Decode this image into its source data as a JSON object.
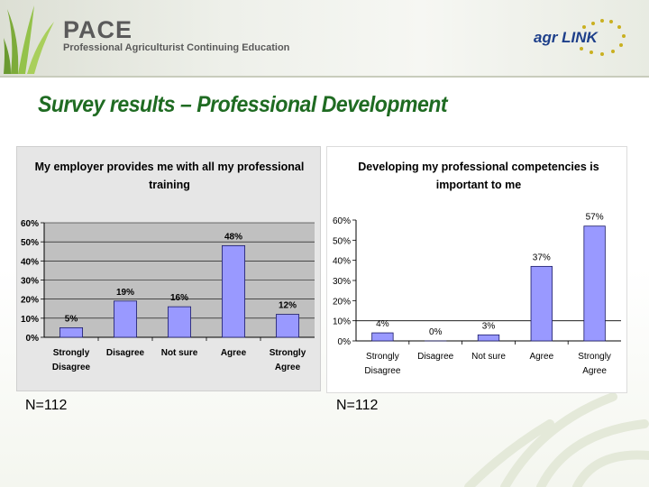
{
  "header": {
    "logo_title": "PACE",
    "logo_subtitle": "Professional Agriculturist Continuing Education",
    "partner_logo_text": "agr LINK"
  },
  "slide_title": "Survey results – Professional Development",
  "colors": {
    "title_green": "#1f6b22",
    "bar_fill": "#9999ff",
    "bar_stroke": "#1a1a66",
    "left_plot_bg": "#c0c0c0",
    "left_panel_bg": "#e6e6e6"
  },
  "chart_data": [
    {
      "type": "bar",
      "title": "My employer provides me with all my professional training",
      "title_lines": [
        "My employer provides me with all my professional",
        "training"
      ],
      "categories": [
        "Strongly Disagree",
        "Disagree",
        "Not sure",
        "Agree",
        "Strongly Agree"
      ],
      "category_lines": [
        [
          "Strongly",
          "Disagree"
        ],
        [
          "Disagree"
        ],
        [
          "Not sure"
        ],
        [
          "Agree"
        ],
        [
          "Strongly",
          "Agree"
        ]
      ],
      "values": [
        5,
        19,
        16,
        48,
        12
      ],
      "value_labels": [
        "5%",
        "19%",
        "16%",
        "48%",
        "12%"
      ],
      "ylim": [
        0,
        60
      ],
      "yticks": [
        "0%",
        "10%",
        "20%",
        "30%",
        "40%",
        "50%",
        "60%"
      ],
      "grid": true,
      "n_label": "N=112"
    },
    {
      "type": "bar",
      "title": "Developing my professional competencies is important to me",
      "title_lines": [
        "Developing my professional competencies is",
        "important to me"
      ],
      "categories": [
        "Strongly Disagree",
        "Disagree",
        "Not sure",
        "Agree",
        "Strongly Agree"
      ],
      "category_lines": [
        [
          "Strongly",
          "Disagree"
        ],
        [
          "Disagree"
        ],
        [
          "Not sure"
        ],
        [
          "Agree"
        ],
        [
          "Strongly",
          "Agree"
        ]
      ],
      "values": [
        4,
        0,
        3,
        37,
        57
      ],
      "value_labels": [
        "4%",
        "0%",
        "3%",
        "37%",
        "57%"
      ],
      "ylim": [
        0,
        60
      ],
      "yticks": [
        "0%",
        "10%",
        "20%",
        "30%",
        "40%",
        "50%",
        "60%"
      ],
      "grid": false,
      "n_label": "N=112"
    }
  ]
}
